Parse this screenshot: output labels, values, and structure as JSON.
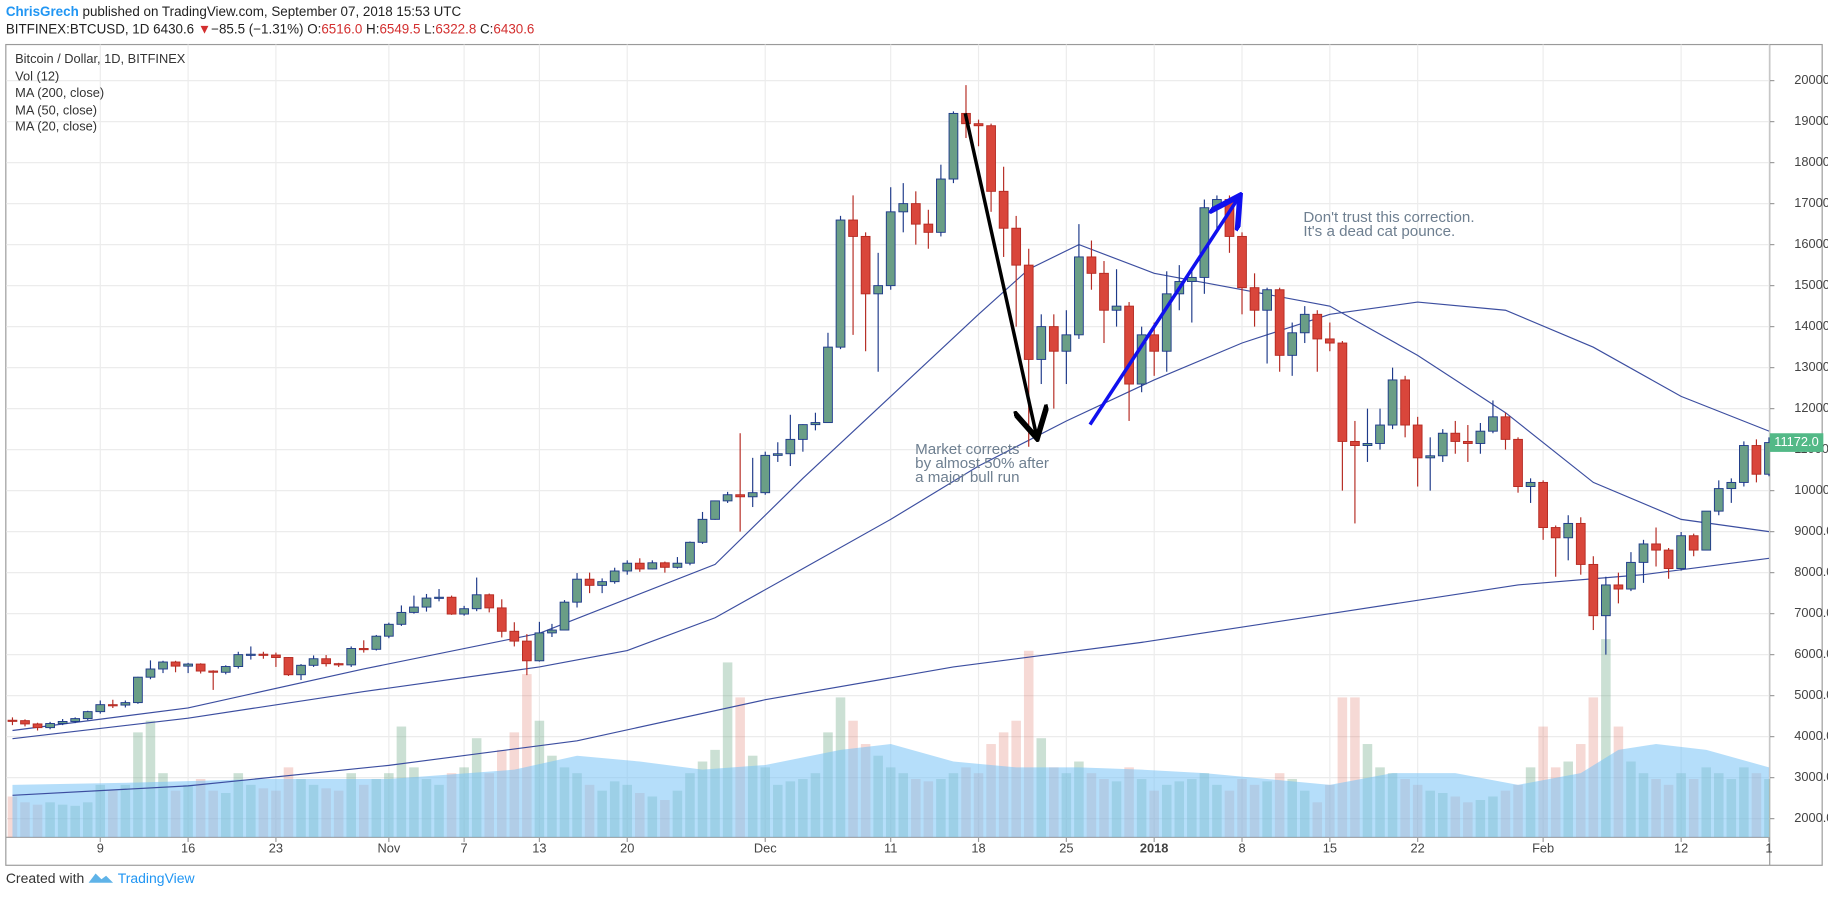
{
  "header": {
    "author": "ChrisGrech",
    "published": "published on TradingView.com, September 07, 2018 15:53 UTC",
    "symbol": "BITFINEX:BTCUSD, 1D",
    "last": "6430.6",
    "direction": "▼",
    "change": "−85.5 (−1.31%)",
    "ohlc": [
      {
        "key": "O:",
        "value": "6516.0"
      },
      {
        "key": "H:",
        "value": "6549.5"
      },
      {
        "key": "L:",
        "value": "6322.8"
      },
      {
        "key": "C:",
        "value": "6430.6"
      }
    ]
  },
  "chart_data": {
    "type": "candlestick",
    "title": "Bitcoin / Dollar, 1D, BITFINEX",
    "categories": [
      null,
      null,
      null,
      null,
      null,
      null,
      null,
      "9",
      null,
      null,
      null,
      null,
      null,
      null,
      "16",
      null,
      null,
      null,
      null,
      null,
      null,
      "23",
      null,
      null,
      null,
      null,
      null,
      null,
      null,
      null,
      "Nov",
      null,
      null,
      null,
      null,
      null,
      "7",
      null,
      null,
      null,
      null,
      null,
      "13",
      null,
      null,
      null,
      null,
      null,
      null,
      "20",
      null,
      null,
      null,
      null,
      null,
      null,
      null,
      null,
      null,
      null,
      "Dec",
      null,
      null,
      null,
      null,
      null,
      null,
      null,
      null,
      null,
      "11",
      null,
      null,
      null,
      null,
      null,
      null,
      "18",
      null,
      null,
      null,
      null,
      null,
      null,
      "25",
      null,
      null,
      null,
      null,
      null,
      null,
      "2018",
      null,
      null,
      null,
      null,
      null,
      null,
      "8",
      null,
      null,
      null,
      null,
      null,
      null,
      "15",
      null,
      null,
      null,
      null,
      null,
      null,
      "22",
      null,
      null,
      null,
      null,
      null,
      null,
      null,
      null,
      null,
      "Feb",
      null,
      null,
      null,
      null,
      null,
      null,
      null,
      null,
      null,
      null,
      "12",
      null,
      null,
      null,
      null,
      null,
      null,
      "1"
    ],
    "open": [
      4400,
      4390,
      4310,
      4220,
      4320,
      4370,
      4440,
      4610,
      4780,
      4770,
      4830,
      5450,
      5650,
      5820,
      5720,
      5770,
      5600,
      5570,
      5710,
      6000,
      6010,
      5990,
      5930,
      5510,
      5740,
      5900,
      5780,
      5750,
      6150,
      6130,
      6450,
      6740,
      7030,
      7160,
      7380,
      7400,
      6990,
      7120,
      7460,
      7140,
      6570,
      6330,
      5850,
      6530,
      6600,
      7280,
      7840,
      7690,
      7780,
      8040,
      8230,
      8090,
      8240,
      8130,
      8230,
      8740,
      9300,
      9750,
      9900,
      9850,
      9950,
      10860,
      10900,
      11250,
      11610,
      11660,
      13500,
      16600,
      16200,
      14800,
      15000,
      16800,
      17000,
      16500,
      16300,
      17600,
      19200,
      18950,
      18900,
      17300,
      16400,
      15500,
      13200,
      14000,
      13400,
      13800,
      15700,
      15300,
      14400,
      14500,
      12600,
      13800,
      13400,
      14800,
      15100,
      15200,
      16900,
      17100,
      16200,
      14950,
      14400,
      14900,
      13300,
      13850,
      14300,
      13700,
      13600,
      11200,
      11100,
      11150,
      11600,
      12700,
      11600,
      10800,
      10850,
      11400,
      11200,
      11150,
      11450,
      11800,
      11250,
      10100,
      10200,
      9100,
      8850,
      9200,
      8200,
      6950,
      7700,
      7600,
      8250,
      8700,
      8550,
      8100,
      8900,
      8550,
      9500,
      10050,
      10200,
      11100,
      10400
    ],
    "high": [
      4470,
      4420,
      4340,
      4360,
      4430,
      4470,
      4630,
      4880,
      4900,
      4880,
      5460,
      5860,
      5850,
      5850,
      5800,
      5790,
      5620,
      5740,
      6070,
      6200,
      6070,
      6050,
      5940,
      5770,
      5980,
      5990,
      5800,
      6200,
      6350,
      6480,
      6780,
      7200,
      7440,
      7480,
      7600,
      7440,
      7190,
      7880,
      7490,
      7350,
      6790,
      6500,
      6800,
      6750,
      7330,
      7990,
      8000,
      7860,
      8120,
      8300,
      8350,
      8300,
      8270,
      8380,
      8760,
      9480,
      9760,
      9970,
      11400,
      10800,
      10950,
      11180,
      11850,
      11620,
      11900,
      13850,
      16700,
      17200,
      16300,
      15800,
      17400,
      17500,
      17300,
      16850,
      17950,
      19250,
      19890,
      19050,
      18950,
      17900,
      16700,
      15900,
      14300,
      14300,
      14400,
      16500,
      16100,
      15600,
      15400,
      14600,
      14000,
      14100,
      15350,
      15500,
      15450,
      17100,
      17200,
      17200,
      16300,
      15300,
      14950,
      14950,
      14100,
      14500,
      14400,
      14100,
      13650,
      11700,
      12000,
      12000,
      13000,
      12800,
      11800,
      11300,
      11500,
      11700,
      11600,
      11650,
      12200,
      11900,
      11300,
      10300,
      10250,
      9150,
      9400,
      9350,
      8400,
      7900,
      8000,
      8500,
      8800,
      9100,
      8600,
      8990,
      8950,
      9500,
      10250,
      10300,
      11200,
      11250,
      11300
    ],
    "low": [
      4280,
      4250,
      4150,
      4180,
      4280,
      4330,
      4400,
      4560,
      4700,
      4710,
      4800,
      5400,
      5550,
      5570,
      5550,
      5540,
      5140,
      5520,
      5660,
      5880,
      5900,
      5700,
      5480,
      5380,
      5700,
      5710,
      5700,
      5700,
      6050,
      6100,
      6400,
      6700,
      7000,
      7050,
      7300,
      6970,
      6950,
      7060,
      7030,
      6420,
      6200,
      5500,
      5830,
      6430,
      6600,
      7150,
      7500,
      7500,
      7730,
      7950,
      8020,
      8080,
      8000,
      8100,
      8180,
      8700,
      9290,
      9700,
      9000,
      9600,
      9900,
      10700,
      10600,
      10950,
      11470,
      11650,
      13450,
      13800,
      13400,
      12900,
      14900,
      16300,
      16000,
      15900,
      16200,
      17500,
      18600,
      18400,
      16800,
      15700,
      14000,
      11070,
      12600,
      12000,
      12600,
      13700,
      14900,
      13600,
      14000,
      11700,
      12400,
      12800,
      12900,
      14400,
      14100,
      14800,
      16300,
      15800,
      14300,
      14000,
      13100,
      12900,
      12800,
      13600,
      12900,
      13400,
      10000,
      9200,
      10700,
      11000,
      11500,
      11300,
      10100,
      10000,
      10700,
      10900,
      10700,
      10900,
      11400,
      11000,
      9950,
      9700,
      8800,
      7900,
      8300,
      7950,
      6600,
      6000,
      7250,
      7550,
      7750,
      8150,
      7850,
      8050,
      8400,
      8550,
      9400,
      9700,
      10100,
      10200,
      10350
    ],
    "close": [
      4390,
      4310,
      4220,
      4320,
      4370,
      4440,
      4610,
      4780,
      4770,
      4830,
      5450,
      5650,
      5820,
      5720,
      5770,
      5600,
      5570,
      5710,
      6000,
      6010,
      5990,
      5930,
      5510,
      5740,
      5900,
      5780,
      5750,
      6150,
      6130,
      6450,
      6740,
      7030,
      7160,
      7380,
      7400,
      6990,
      7120,
      7460,
      7140,
      6570,
      6330,
      5850,
      6530,
      6600,
      7280,
      7840,
      7690,
      7780,
      8040,
      8230,
      8090,
      8240,
      8130,
      8230,
      8740,
      9300,
      9750,
      9900,
      9850,
      9950,
      10860,
      10900,
      11250,
      11610,
      11660,
      13500,
      16600,
      16200,
      14800,
      15000,
      16800,
      17000,
      16500,
      16300,
      17600,
      19200,
      18950,
      18900,
      17300,
      16400,
      15500,
      13200,
      14000,
      13400,
      13800,
      15700,
      15300,
      14400,
      14500,
      12600,
      13800,
      13400,
      14800,
      15100,
      15200,
      16900,
      17100,
      16200,
      14950,
      14400,
      14900,
      13300,
      13850,
      14300,
      13700,
      13600,
      11200,
      11100,
      11150,
      11600,
      12700,
      11600,
      10800,
      10850,
      11400,
      11200,
      11150,
      11450,
      11800,
      11250,
      10100,
      10200,
      9100,
      8850,
      9200,
      8200,
      6950,
      7700,
      7600,
      8250,
      8700,
      8550,
      8100,
      8900,
      8550,
      9500,
      10050,
      10200,
      11100,
      10400,
      11172
    ],
    "colors": {
      "up_fill": "#6a9e86",
      "up_border": "#1e3a8a",
      "down_fill": "#d9463b",
      "down_border": "#b52a22"
    },
    "ylim": [
      1545,
      20880
    ],
    "yticks": [
      {
        "value": 2000,
        "label": "2000.0"
      },
      {
        "value": 3000,
        "label": "3000.0"
      },
      {
        "value": 4000,
        "label": "4000.0"
      },
      {
        "value": 5000,
        "label": "5000.0"
      },
      {
        "value": 6000,
        "label": "6000.0"
      },
      {
        "value": 7000,
        "label": "7000.0"
      },
      {
        "value": 8000,
        "label": "8000.0"
      },
      {
        "value": 9000,
        "label": "9000.0"
      },
      {
        "value": 10000,
        "label": "10000.0"
      },
      {
        "value": 11000,
        "label": "11000.0"
      },
      {
        "value": 12000,
        "label": "12000.0"
      },
      {
        "value": 13000,
        "label": "13000.0"
      },
      {
        "value": 14000,
        "label": "14000.0"
      },
      {
        "value": 15000,
        "label": "15000.0"
      },
      {
        "value": 16000,
        "label": "16000.0"
      },
      {
        "value": 17000,
        "label": "17000.0"
      },
      {
        "value": 18000,
        "label": "18000.0"
      },
      {
        "value": 19000,
        "label": "19000.0"
      },
      {
        "value": 20000,
        "label": "20000.0"
      }
    ],
    "grid": true,
    "last_price": {
      "value": 11172,
      "label": "11172.0",
      "color": "#53b987"
    },
    "volume": {
      "name": "Vol (12)",
      "up_color": "rgba(107,165,131,0.35)",
      "down_color": "rgba(215,84,66,0.22)",
      "ylim": [
        0,
        200
      ],
      "values": [
        35,
        30,
        28,
        30,
        28,
        27,
        30,
        45,
        40,
        45,
        90,
        100,
        55,
        40,
        45,
        50,
        40,
        38,
        55,
        45,
        42,
        40,
        60,
        50,
        45,
        42,
        40,
        55,
        45,
        50,
        55,
        95,
        60,
        50,
        45,
        55,
        60,
        85,
        55,
        75,
        90,
        140,
        100,
        70,
        60,
        55,
        45,
        40,
        48,
        45,
        38,
        35,
        32,
        40,
        55,
        65,
        75,
        150,
        120,
        70,
        60,
        45,
        48,
        50,
        55,
        90,
        120,
        100,
        80,
        70,
        60,
        55,
        50,
        48,
        50,
        55,
        60,
        55,
        80,
        90,
        100,
        160,
        85,
        60,
        55,
        65,
        55,
        50,
        48,
        60,
        50,
        40,
        45,
        48,
        50,
        55,
        45,
        40,
        50,
        45,
        48,
        55,
        50,
        40,
        30,
        45,
        120,
        120,
        80,
        60,
        55,
        50,
        45,
        40,
        38,
        35,
        30,
        32,
        35,
        40,
        45,
        60,
        95,
        60,
        65,
        80,
        120,
        170,
        95,
        65,
        55,
        50,
        45,
        55,
        50,
        60,
        55,
        50,
        60,
        55,
        50
      ],
      "ma": {
        "color": "rgba(120,195,245,0.55)",
        "x": [
          0,
          10,
          20,
          30,
          40,
          45,
          50,
          55,
          60,
          66,
          70,
          75,
          80,
          85,
          90,
          95,
          100,
          105,
          110,
          115,
          120,
          125,
          128,
          131,
          135,
          140
        ],
        "values": [
          45,
          47,
          50,
          50,
          58,
          70,
          65,
          58,
          62,
          75,
          80,
          65,
          60,
          60,
          58,
          55,
          50,
          45,
          55,
          55,
          45,
          55,
          75,
          80,
          75,
          60
        ]
      }
    },
    "series": [
      {
        "name": "MA (200, close)",
        "color": "#3c4ea0",
        "x": [
          0,
          14,
          30,
          45,
          60,
          75,
          90,
          105,
          120,
          130,
          140
        ],
        "values": [
          2570,
          2800,
          3300,
          3900,
          4900,
          5700,
          6300,
          7000,
          7700,
          7950,
          8350
        ]
      },
      {
        "name": "MA (50, close)",
        "color": "#3c4ea0",
        "x": [
          0,
          14,
          28,
          42,
          49,
          56,
          63,
          70,
          77,
          84,
          91,
          98,
          105,
          112,
          119,
          126,
          133,
          140
        ],
        "values": [
          3950,
          4450,
          5100,
          5700,
          6100,
          6900,
          8100,
          9300,
          10600,
          11700,
          12700,
          13600,
          14300,
          14600,
          14400,
          13500,
          12300,
          11450
        ]
      },
      {
        "name": "MA (20, close)",
        "color": "#3c4ea0",
        "x": [
          0,
          14,
          28,
          42,
          56,
          63,
          70,
          77,
          81,
          85,
          91,
          98,
          105,
          112,
          119,
          126,
          133,
          140
        ],
        "values": [
          4150,
          4700,
          5650,
          6520,
          8200,
          10300,
          12300,
          14300,
          15400,
          16000,
          15300,
          14900,
          14500,
          13300,
          11900,
          10200,
          9300,
          9000
        ]
      }
    ],
    "annotations": [
      {
        "lines": [
          "Market corrects",
          "by almost 50% after",
          "a major bull run"
        ]
      },
      {
        "lines": [
          "Don't trust this correction.",
          "It's a dead cat pounce."
        ]
      }
    ]
  },
  "footer": {
    "text": "Created with",
    "brand": "TradingView"
  }
}
